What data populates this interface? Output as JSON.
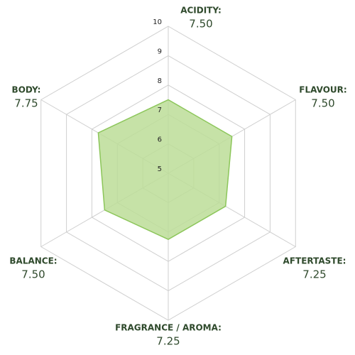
{
  "chart_data": {
    "type": "radar",
    "categories": [
      "ACIDITY:",
      "FLAVOUR:",
      "AFTERTASTE:",
      "FRAGRANCE / AROMA:",
      "BALANCE:",
      "BODY:"
    ],
    "values": [
      7.5,
      7.5,
      7.25,
      7.25,
      7.5,
      7.75
    ],
    "value_labels": [
      "7.50",
      "7.50",
      "7.25",
      "7.25",
      "7.50",
      "7.75"
    ],
    "ylim": [
      5,
      10
    ],
    "yticks": [
      5,
      6,
      7,
      8,
      9,
      10
    ],
    "color": "#8cc65a",
    "fill": "#bcdd98",
    "grid": true
  }
}
